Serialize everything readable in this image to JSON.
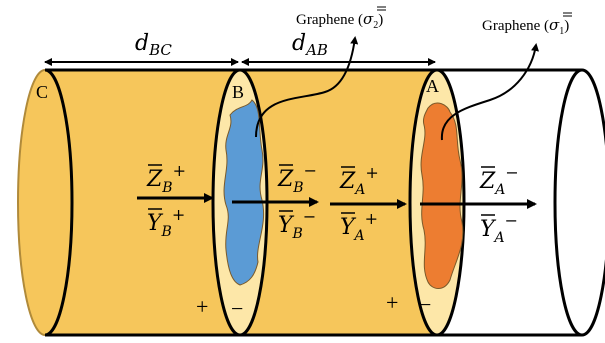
{
  "colors": {
    "cylinder_fill": "#f6c65b",
    "end_face_fill": "#fde7a8",
    "graphene_1": "#ed7d31",
    "graphene_2": "#5b9bd5",
    "outline": "#000000",
    "background": "#ffffff"
  },
  "dimensions": {
    "d_bc": {
      "base": "d",
      "sub": "BC"
    },
    "d_ab": {
      "base": "d",
      "sub": "AB"
    }
  },
  "labels": {
    "interface_c": "C",
    "interface_b": "B",
    "interface_a": "A",
    "graphene_2": {
      "text": "Graphene (",
      "sym": "σ",
      "sub": "2",
      "close": ")"
    },
    "graphene_1": {
      "text": "Graphene (",
      "sym": "σ",
      "sub": "1",
      "close": ")"
    }
  },
  "impedances": {
    "z_b_plus": {
      "base": "Z",
      "sub": "B",
      "sup": "+"
    },
    "y_b_plus": {
      "base": "Y",
      "sub": "B",
      "sup": "+"
    },
    "z_b_minus": {
      "base": "Z",
      "sub": "B",
      "sup": "−"
    },
    "y_b_minus": {
      "base": "Y",
      "sub": "B",
      "sup": "−"
    },
    "z_a_plus": {
      "base": "Z",
      "sub": "A",
      "sup": "+"
    },
    "y_a_plus": {
      "base": "Y",
      "sub": "A",
      "sup": "+"
    },
    "z_a_minus": {
      "base": "Z",
      "sub": "A",
      "sup": "−"
    },
    "y_a_minus": {
      "base": "Y",
      "sub": "A",
      "sup": "−"
    }
  },
  "signs": {
    "b_plus": "+",
    "b_minus": "−",
    "a_plus": "+",
    "a_minus": "−"
  }
}
